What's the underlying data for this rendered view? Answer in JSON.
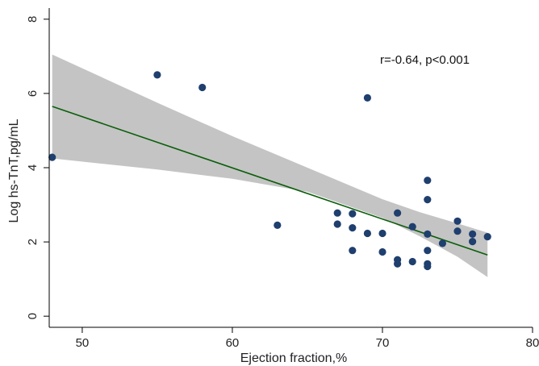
{
  "chart_data": {
    "type": "scatter",
    "title": "",
    "xlabel": "Ejection fraction,%",
    "ylabel": "Log hs-TnT,pg/mL",
    "xlim": [
      47.8,
      80
    ],
    "ylim": [
      -0.3,
      8.3
    ],
    "x_ticks": [
      "50",
      "60",
      "70",
      "80"
    ],
    "y_ticks": [
      "0",
      "2",
      "4",
      "6",
      "8"
    ],
    "grid": false,
    "legend": "none",
    "annotation": "r=-0.64, p<0.001",
    "colors": {
      "points": "#1f3f6e",
      "fit_line": "#0b5e0b",
      "confidence_band": "#c4c4c4",
      "axis": "#000000"
    },
    "fit_line": {
      "x": [
        48,
        77
      ],
      "y": [
        5.65,
        1.65
      ]
    },
    "confidence_band": {
      "x": [
        48,
        55,
        60,
        65,
        70,
        72.5,
        75,
        77
      ],
      "upper": [
        7.05,
        5.75,
        4.85,
        4.0,
        3.15,
        2.8,
        2.5,
        2.25
      ],
      "lower": [
        4.25,
        3.95,
        3.7,
        3.35,
        2.65,
        2.15,
        1.6,
        1.05
      ]
    },
    "points": [
      {
        "x": 48,
        "y": 4.28
      },
      {
        "x": 55,
        "y": 6.5
      },
      {
        "x": 58,
        "y": 6.16
      },
      {
        "x": 63,
        "y": 2.45
      },
      {
        "x": 67,
        "y": 2.78
      },
      {
        "x": 67,
        "y": 2.48
      },
      {
        "x": 68,
        "y": 2.76
      },
      {
        "x": 68,
        "y": 2.38
      },
      {
        "x": 68,
        "y": 1.77
      },
      {
        "x": 69,
        "y": 5.88
      },
      {
        "x": 69,
        "y": 2.23
      },
      {
        "x": 70,
        "y": 2.23
      },
      {
        "x": 70,
        "y": 1.73
      },
      {
        "x": 71,
        "y": 2.78
      },
      {
        "x": 71,
        "y": 1.52
      },
      {
        "x": 71,
        "y": 1.41
      },
      {
        "x": 72,
        "y": 2.41
      },
      {
        "x": 72,
        "y": 1.47
      },
      {
        "x": 73,
        "y": 3.66
      },
      {
        "x": 73,
        "y": 3.14
      },
      {
        "x": 73,
        "y": 2.21
      },
      {
        "x": 73,
        "y": 1.77
      },
      {
        "x": 73,
        "y": 1.41
      },
      {
        "x": 73,
        "y": 1.34
      },
      {
        "x": 74,
        "y": 1.96
      },
      {
        "x": 75,
        "y": 2.56
      },
      {
        "x": 75,
        "y": 2.29
      },
      {
        "x": 76,
        "y": 2.21
      },
      {
        "x": 76,
        "y": 2.01
      },
      {
        "x": 77,
        "y": 2.14
      }
    ]
  }
}
